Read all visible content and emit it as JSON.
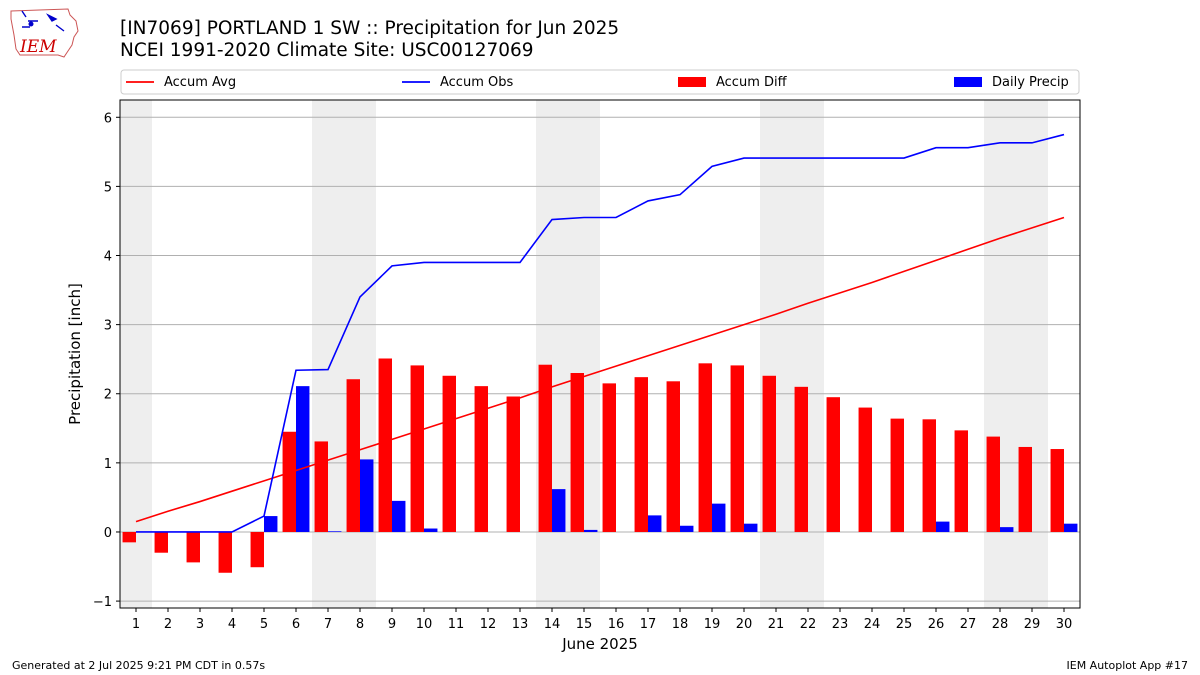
{
  "header": {
    "title": "[IN7069] PORTLAND 1 SW :: Precipitation for Jun 2025",
    "subtitle": "NCEI 1991-2020 Climate Site: USC00127069",
    "logo_text": "IEM"
  },
  "footer": {
    "left": "Generated at 2 Jul 2025 9:21 PM CDT in 0.57s",
    "right": "IEM Autoplot App #17"
  },
  "colors": {
    "accum_avg": "#ff0000",
    "accum_obs": "#0000ff",
    "accum_diff": "#ff0000",
    "daily_precip": "#0000ff",
    "weekend_shade": "#eeeeee",
    "grid": "#b0b0b0"
  },
  "chart_data": {
    "type": "bar",
    "xlabel": "June 2025",
    "ylabel": "Precipitation [inch]",
    "ylim": [
      -1.1,
      6.25
    ],
    "yticks": [
      -1,
      0,
      1,
      2,
      3,
      4,
      5,
      6
    ],
    "grid": true,
    "legend_position": "top",
    "x": [
      1,
      2,
      3,
      4,
      5,
      6,
      7,
      8,
      9,
      10,
      11,
      12,
      13,
      14,
      15,
      16,
      17,
      18,
      19,
      20,
      21,
      22,
      23,
      24,
      25,
      26,
      27,
      28,
      29,
      30
    ],
    "shaded_days": [
      1,
      7,
      8,
      14,
      15,
      21,
      22,
      28,
      29
    ],
    "series": [
      {
        "name": "Accum Avg",
        "kind": "line",
        "color": "#ff0000",
        "values": [
          0.15,
          0.3,
          0.44,
          0.59,
          0.74,
          0.89,
          1.04,
          1.19,
          1.34,
          1.49,
          1.64,
          1.79,
          1.94,
          2.1,
          2.25,
          2.4,
          2.55,
          2.7,
          2.85,
          3.0,
          3.15,
          3.31,
          3.46,
          3.61,
          3.77,
          3.93,
          4.09,
          4.25,
          4.4,
          4.55
        ]
      },
      {
        "name": "Accum Obs",
        "kind": "line",
        "color": "#0000ff",
        "values": [
          0.0,
          0.0,
          0.0,
          0.0,
          0.23,
          2.34,
          2.35,
          3.4,
          3.85,
          3.9,
          3.9,
          3.9,
          3.9,
          4.52,
          4.55,
          4.55,
          4.79,
          4.88,
          5.29,
          5.41,
          5.41,
          5.41,
          5.41,
          5.41,
          5.41,
          5.56,
          5.56,
          5.63,
          5.63,
          5.75
        ]
      },
      {
        "name": "Accum Diff",
        "kind": "bar",
        "color": "#ff0000",
        "values": [
          -0.15,
          -0.3,
          -0.44,
          -0.59,
          -0.51,
          1.45,
          1.31,
          2.21,
          2.51,
          2.41,
          2.26,
          2.11,
          1.96,
          2.42,
          2.3,
          2.15,
          2.24,
          2.18,
          2.44,
          2.41,
          2.26,
          2.1,
          1.95,
          1.8,
          1.64,
          1.63,
          1.47,
          1.38,
          1.23,
          1.2
        ]
      },
      {
        "name": "Daily Precip",
        "kind": "bar",
        "color": "#0000ff",
        "values": [
          0.0,
          0.0,
          0.0,
          0.0,
          0.23,
          2.11,
          0.01,
          1.05,
          0.45,
          0.05,
          0.0,
          0.0,
          0.0,
          0.62,
          0.03,
          0.0,
          0.24,
          0.09,
          0.41,
          0.12,
          0.0,
          0.0,
          0.0,
          0.0,
          0.0,
          0.15,
          0.0,
          0.07,
          0.0,
          0.12
        ]
      }
    ]
  }
}
